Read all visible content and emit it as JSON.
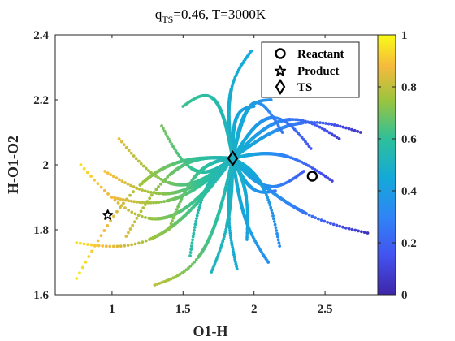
{
  "chart_data": {
    "type": "scatter",
    "title": "q",
    "title_sub": "TS",
    "title_rest": "=0.46, T=3000K",
    "xlabel": "O1-H",
    "ylabel": "H-O1-O2",
    "xlim": [
      0.6,
      2.9
    ],
    "ylim": [
      1.6,
      2.4
    ],
    "xticks": [
      "1",
      "1.5",
      "2",
      "2.5"
    ],
    "yticks": [
      "1.6",
      "1.8",
      "2",
      "2.2",
      "2.4"
    ],
    "colorbar": {
      "range": [
        0,
        1
      ],
      "ticks": [
        "0",
        "0.2",
        "0.4",
        "0.6",
        "0.8",
        "1"
      ],
      "colormap": "parula"
    },
    "legend": {
      "placement": "top-right",
      "entries": [
        "Reactant",
        "Product",
        "TS"
      ]
    },
    "grid": false,
    "markers": {
      "reactant": {
        "x": 2.41,
        "y": 1.965
      },
      "product": {
        "x": 0.97,
        "y": 1.845
      },
      "ts": {
        "x": 1.85,
        "y": 2.02
      }
    },
    "trajectories": [
      {
        "end": [
          2.75,
          2.1
        ],
        "curve": 0.03,
        "color_end": 0.05
      },
      {
        "end": [
          2.6,
          2.08
        ],
        "curve": 0.04,
        "color_end": 0.08
      },
      {
        "end": [
          2.8,
          1.79
        ],
        "curve": -0.02,
        "color_end": 0.04
      },
      {
        "end": [
          2.55,
          1.95
        ],
        "curve": 0.02,
        "color_end": 0.1
      },
      {
        "end": [
          2.4,
          2.05
        ],
        "curve": 0.05,
        "color_end": 0.15
      },
      {
        "end": [
          2.35,
          1.98
        ],
        "curve": -0.03,
        "color_end": 0.18
      },
      {
        "end": [
          2.2,
          2.1
        ],
        "curve": 0.06,
        "color_end": 0.25
      },
      {
        "end": [
          2.15,
          1.92
        ],
        "curve": -0.02,
        "color_end": 0.28
      },
      {
        "end": [
          2.18,
          1.75
        ],
        "curve": 0.03,
        "color_end": 0.32
      },
      {
        "end": [
          2.1,
          1.7
        ],
        "curve": -0.02,
        "color_end": 0.34
      },
      {
        "end": [
          2.0,
          2.18
        ],
        "curve": 0.03,
        "color_end": 0.38
      },
      {
        "end": [
          1.98,
          2.35
        ],
        "curve": 0.04,
        "color_end": 0.45
      },
      {
        "end": [
          2.12,
          2.2
        ],
        "curve": 0.03,
        "color_end": 0.35
      },
      {
        "end": [
          1.95,
          1.77
        ],
        "curve": 0.02,
        "color_end": 0.42
      },
      {
        "end": [
          1.88,
          1.68
        ],
        "curve": -0.02,
        "color_end": 0.46
      },
      {
        "end": [
          1.7,
          1.67
        ],
        "curve": 0.02,
        "color_end": 0.52
      },
      {
        "end": [
          1.55,
          1.72
        ],
        "curve": -0.03,
        "color_end": 0.58
      },
      {
        "end": [
          1.5,
          2.18
        ],
        "curve": -0.05,
        "color_end": 0.62
      },
      {
        "end": [
          1.35,
          2.12
        ],
        "curve": 0.04,
        "color_end": 0.7
      },
      {
        "end": [
          1.05,
          2.08
        ],
        "curve": 0.05,
        "color_end": 0.85
      },
      {
        "end": [
          0.78,
          2.0
        ],
        "curve": 0.08,
        "color_end": 0.95
      },
      {
        "end": [
          0.75,
          1.65
        ],
        "curve": -0.06,
        "color_end": 0.97
      },
      {
        "end": [
          0.75,
          1.76
        ],
        "curve": 0.05,
        "color_end": 0.96
      },
      {
        "end": [
          1.0,
          1.9
        ],
        "curve": 0.03,
        "color_end": 0.88
      },
      {
        "end": [
          1.1,
          1.78
        ],
        "curve": -0.04,
        "color_end": 0.84
      },
      {
        "end": [
          1.3,
          1.63
        ],
        "curve": 0.05,
        "color_end": 0.8
      },
      {
        "end": [
          0.95,
          1.98
        ],
        "curve": 0.04,
        "color_end": 0.9
      },
      {
        "end": [
          1.4,
          1.8
        ],
        "curve": -0.03,
        "color_end": 0.74
      }
    ]
  }
}
